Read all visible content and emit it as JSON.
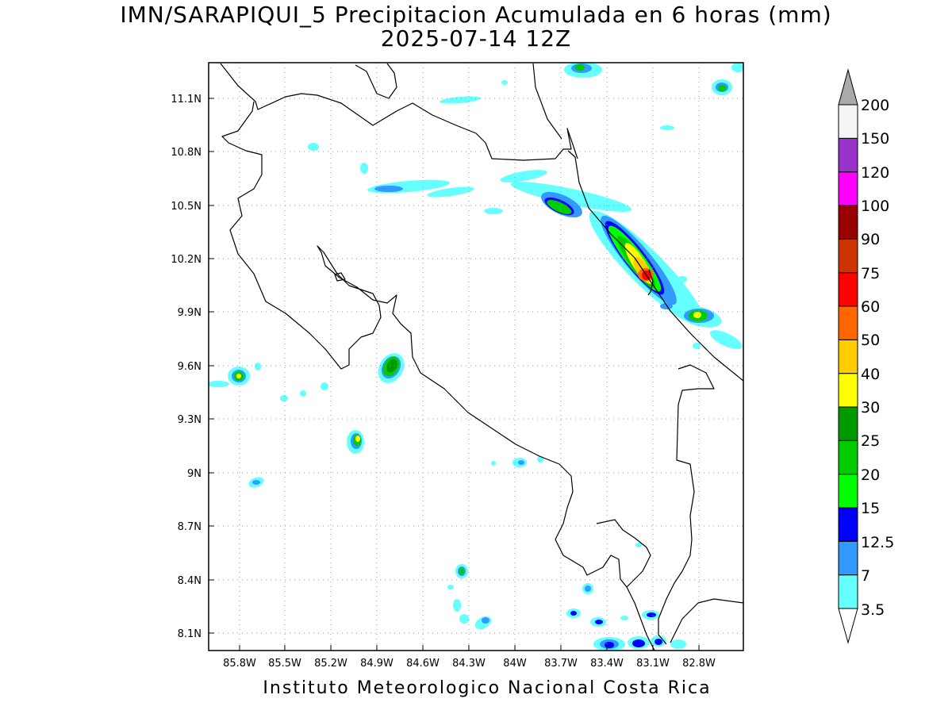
{
  "title_line1": "IMN/SARAPIQUI_5 Precipitacion Acumulada en 6 horas (mm)",
  "title_line2": "2025-07-14 12Z",
  "footer": "Instituto Meteorologico Nacional Costa Rica",
  "map": {
    "lon_ticks": [
      "85.8W",
      "85.5W",
      "85.2W",
      "84.9W",
      "84.6W",
      "84.3W",
      "84W",
      "83.7W",
      "83.4W",
      "83.1W",
      "82.8W"
    ],
    "lat_ticks": [
      "11.1N",
      "10.8N",
      "10.5N",
      "10.2N",
      "9.9N",
      "9.6N",
      "9.3N",
      "9N",
      "8.7N",
      "8.4N",
      "8.1N"
    ],
    "lon_range": [
      -85.97,
      -82.6
    ],
    "lat_range": [
      8.0,
      11.3
    ]
  },
  "colorbar": {
    "levels": [
      "3.5",
      "7",
      "12.5",
      "15",
      "20",
      "25",
      "30",
      "40",
      "50",
      "60",
      "75",
      "90",
      "100",
      "120",
      "150",
      "200"
    ],
    "colors": [
      "#66ffff",
      "#3399ff",
      "#0000ff",
      "#00ff00",
      "#00cc00",
      "#009900",
      "#ffff00",
      "#ffcc00",
      "#ff6600",
      "#ff0000",
      "#cc3300",
      "#990000",
      "#ff00ff",
      "#9933cc",
      "#f4f4f4",
      "#aaaaaa"
    ]
  }
}
